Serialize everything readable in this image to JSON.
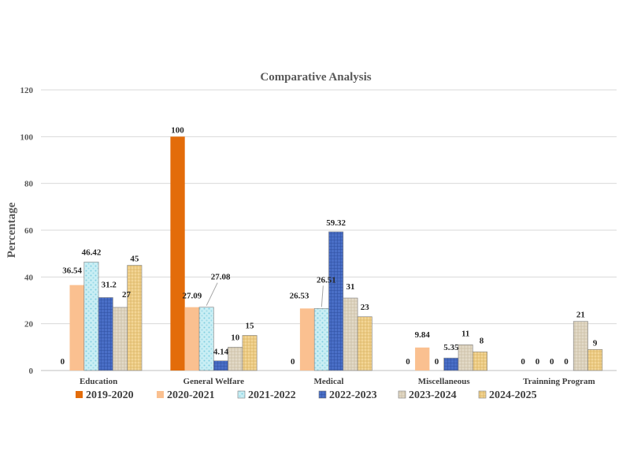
{
  "chart_data": {
    "type": "bar",
    "title": "Comparative Analysis",
    "xlabel": "",
    "ylabel": "Percentage",
    "ylim": [
      0,
      120
    ],
    "yticks": [
      0,
      20,
      40,
      60,
      80,
      100,
      120
    ],
    "grid": true,
    "legend_position": "bottom",
    "categories": [
      "Education",
      "General Welfare",
      "Medical",
      "Miscellaneous",
      "Trainning Program"
    ],
    "series": [
      {
        "name": "2019-2020",
        "color": "#e36c0a",
        "pattern": "solid",
        "values": [
          0,
          100,
          0,
          0,
          0
        ]
      },
      {
        "name": "2020-2021",
        "color": "#fac090",
        "pattern": "solid",
        "values": [
          36.54,
          27.09,
          26.53,
          9.84,
          0
        ]
      },
      {
        "name": "2021-2022",
        "color": "#b7e8f0",
        "pattern": "dots",
        "values": [
          46.42,
          27.08,
          26.51,
          0,
          0
        ]
      },
      {
        "name": "2022-2023",
        "color": "#4a6fc7",
        "pattern": "grid",
        "values": [
          31.2,
          4.14,
          59.32,
          5.35,
          0
        ]
      },
      {
        "name": "2023-2024",
        "color": "#ddd3c0",
        "pattern": "weave",
        "values": [
          27,
          10,
          31,
          11,
          21
        ]
      },
      {
        "name": "2024-2025",
        "color": "#f1d08b",
        "pattern": "weave",
        "values": [
          45,
          15,
          23,
          8,
          9
        ]
      }
    ]
  }
}
